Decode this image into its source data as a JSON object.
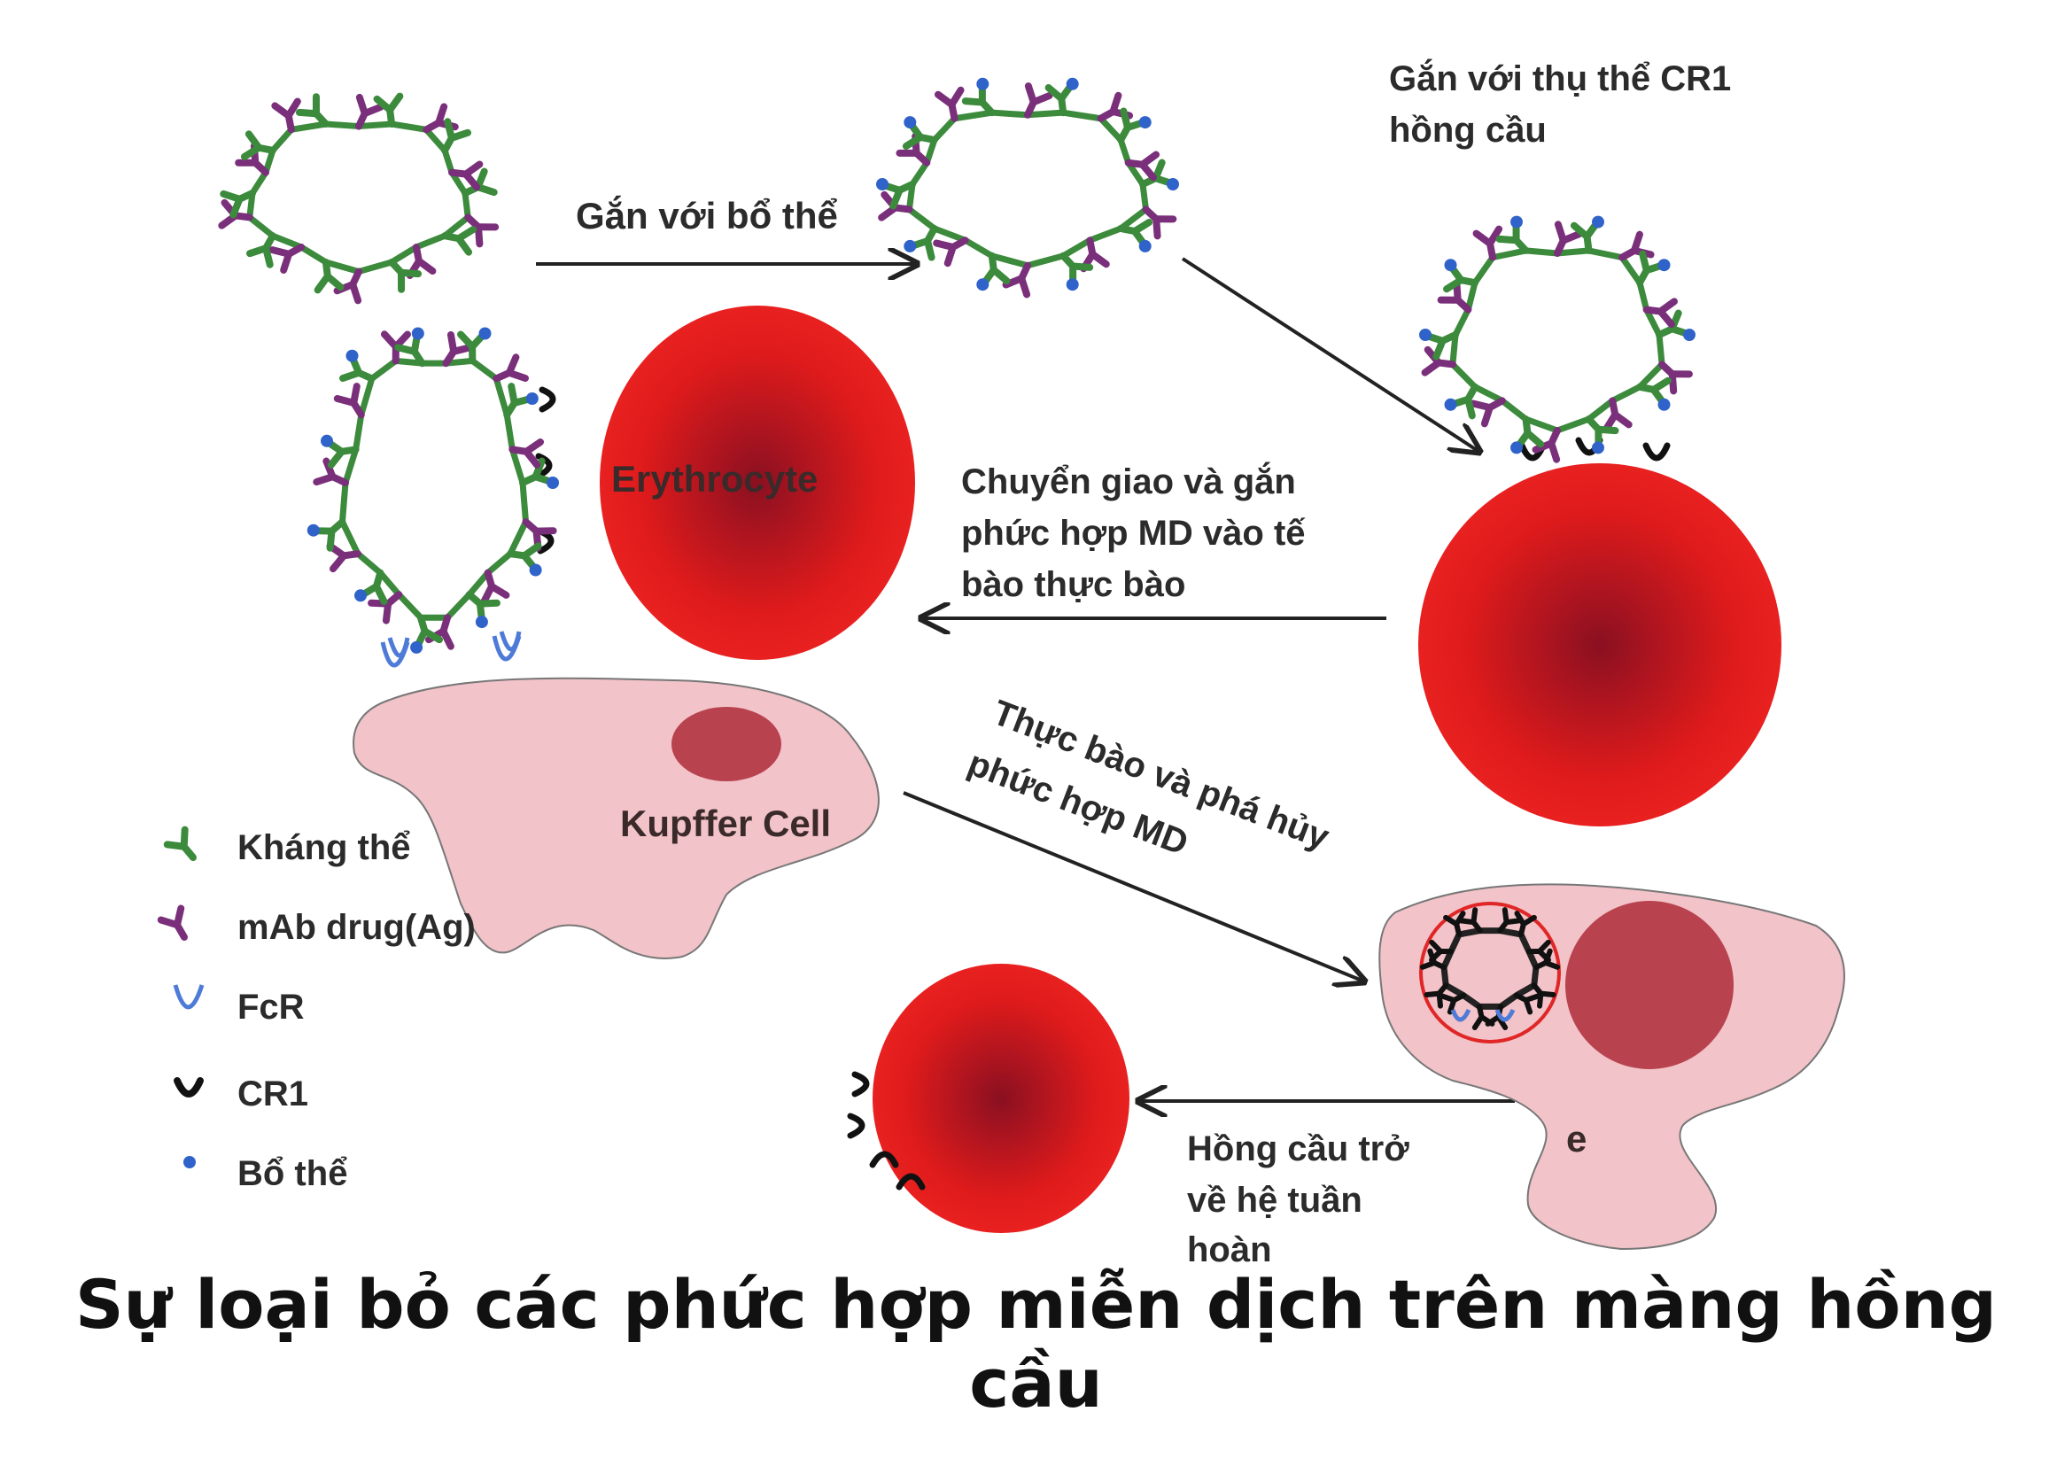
{
  "colors": {
    "antibody": "#3c8a3c",
    "drug": "#7a2f7a",
    "complement": "#2f63c9",
    "fcr": "#4f7bd8",
    "cr1": "#111111",
    "rbc_outer": "#e51d1d",
    "rbc_inner": "#8a1020",
    "kupffer": "#f2c3c8",
    "kupffer_nucleus": "#b8424e",
    "phagosome_ring": "#e02626",
    "arrow": "#222222"
  },
  "icons": {
    "antibody": "antibody-icon",
    "drug": "mab-drug-icon",
    "fcr": "fcr-receptor-icon",
    "cr1": "cr1-receptor-icon",
    "complement": "complement-dot-icon"
  },
  "steps": {
    "bind_complement": "Gắn với bổ thể",
    "bind_cr1_line1": "Gắn với thụ thể CR1",
    "bind_cr1_line2": "hồng cầu",
    "transfer_line1": "Chuyển giao và gắn",
    "transfer_line2": "phức hợp MD vào tế",
    "transfer_line3": "bào thực bào",
    "phago_line1": "Thực bào và phá hủy",
    "phago_line2": "phức hợp MD",
    "return_line1": "Hồng cầu trở",
    "return_line2": "về hệ tuần",
    "return_line3": "hoàn"
  },
  "cells": {
    "erythrocyte": "Erythrocyte",
    "kupffer": "Kupffer Cell",
    "stray_letter": "e"
  },
  "legend": [
    {
      "icon": "antibody-icon",
      "label": "Kháng thể"
    },
    {
      "icon": "mab-drug-icon",
      "label": "mAb drug(Ag)"
    },
    {
      "icon": "fcr-receptor-icon",
      "label": "FcR"
    },
    {
      "icon": "cr1-receptor-icon",
      "label": "CR1"
    },
    {
      "icon": "complement-dot-icon",
      "label": "Bổ thể"
    }
  ],
  "caption": "Sự loại bỏ các phức hợp miễn dịch trên màng hồng cầu"
}
